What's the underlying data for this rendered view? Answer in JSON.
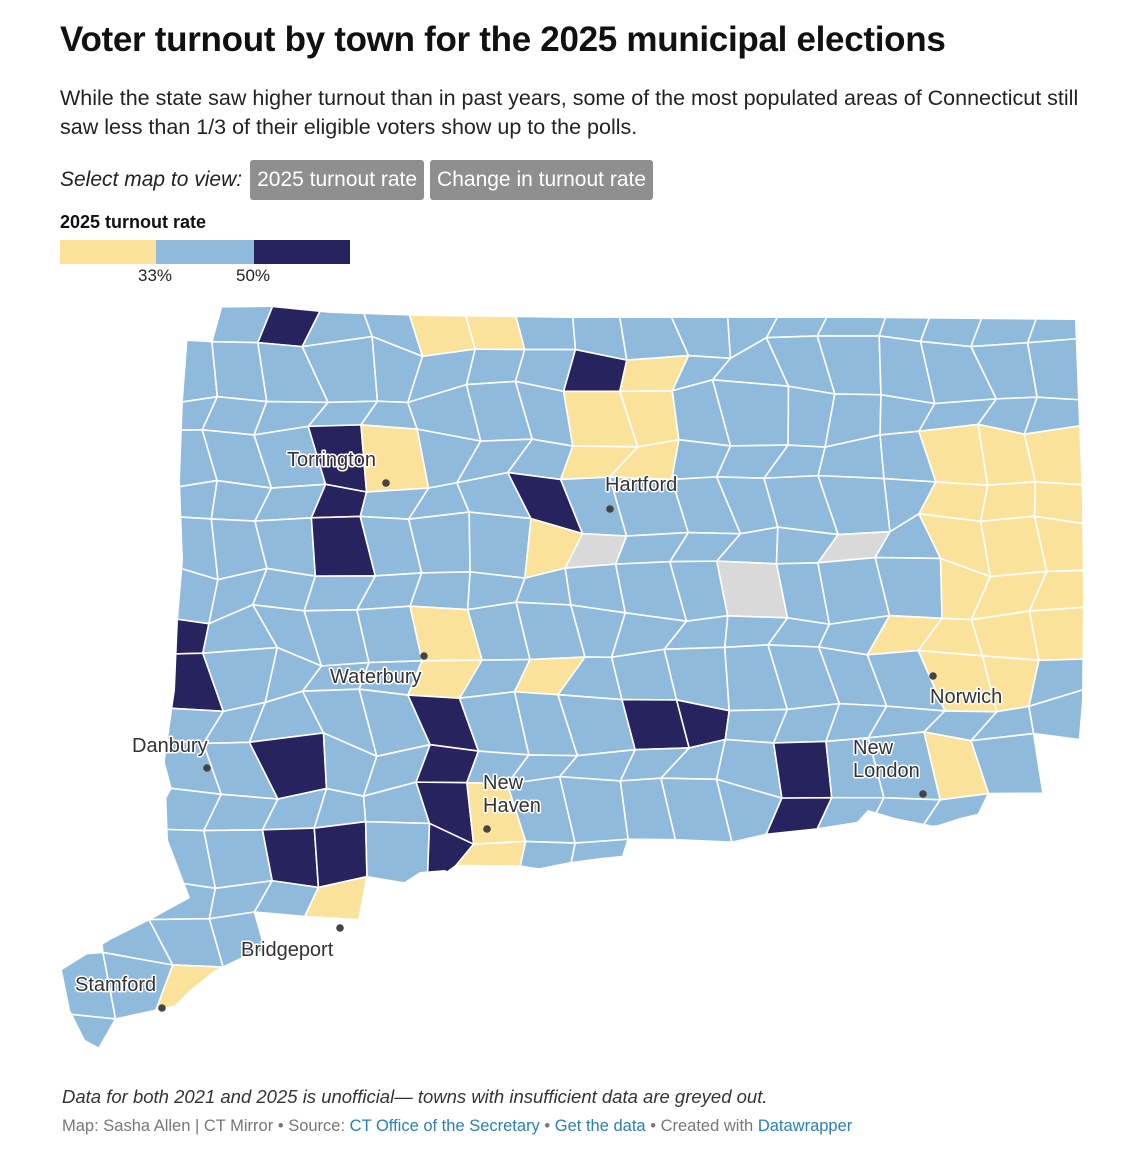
{
  "header": {
    "title": "Voter turnout by town for the 2025 municipal elections",
    "subtitle": "While the state saw higher turnout than in past years, some of the most populated areas of Connecticut still saw less than 1/3 of their eligible voters show up to the polls."
  },
  "selector": {
    "label": "Select map to view:",
    "options": [
      "2025 turnout rate",
      "Change in turnout rate"
    ],
    "selected": "2025 turnout rate"
  },
  "legend": {
    "title": "2025 turnout rate",
    "thresholds": [
      "33%",
      "50%"
    ],
    "colors": {
      "low": "#fbe29b",
      "mid": "#8fbadc",
      "high": "#26235e",
      "no_data": "#d9d9d9"
    }
  },
  "map": {
    "cities": [
      {
        "name": "Torrington"
      },
      {
        "name": "Hartford"
      },
      {
        "name": "Waterbury"
      },
      {
        "name": "Danbury"
      },
      {
        "name": "New Haven"
      },
      {
        "name": "Norwich"
      },
      {
        "name": "New London"
      },
      {
        "name": "Bridgeport"
      },
      {
        "name": "Stamford"
      }
    ]
  },
  "footer": {
    "note": "Data for both 2021 and 2025 is unofficial— towns with insufficient data are greyed out.",
    "credit_prefix": "Map: Sasha Allen | CT Mirror",
    "source_label": "Source:",
    "source_link": "CT Office of the Secretary",
    "get_data": "Get the data",
    "created_with": "Created with",
    "datawrapper": "Datawrapper"
  }
}
